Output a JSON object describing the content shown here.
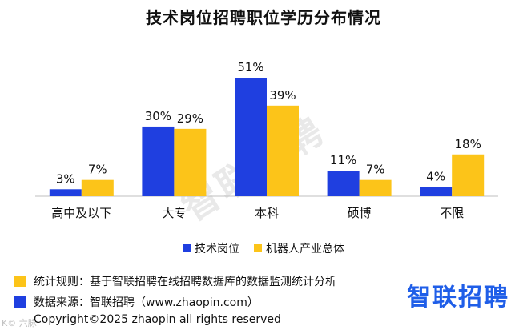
{
  "title": "技术岗位招聘职位学历分布情况",
  "watermark": "智联招聘",
  "legend": [
    {
      "label": "技术岗位",
      "color": "#1f3fe0"
    },
    {
      "label": "机器人产业总体",
      "color": "#fcc419"
    }
  ],
  "notes": [
    {
      "text": "统计规则：基于智联招聘在线招聘数据库的数据监测统计分析",
      "color": "#fcc419"
    },
    {
      "text": "数据来源：智联招聘（www.zhaopin.com）",
      "color": "#1f3fe0"
    }
  ],
  "brand": "智联招聘",
  "copyright": "Copyright©2025 zhaopin all rights reserved",
  "corner_mark": "K© 六脉",
  "chart_data": {
    "type": "bar",
    "title": "技术岗位招聘职位学历分布情况",
    "categories": [
      "高中及以下",
      "大专",
      "本科",
      "硕博",
      "不限"
    ],
    "series": [
      {
        "name": "技术岗位",
        "values": [
          3,
          30,
          51,
          11,
          4
        ],
        "labels": [
          "3%",
          "30%",
          "51%",
          "11%",
          "4%"
        ],
        "color": "#1f3fe0"
      },
      {
        "name": "机器人产业总体",
        "values": [
          7,
          29,
          39,
          7,
          18
        ],
        "labels": [
          "7%",
          "29%",
          "39%",
          "7%",
          "18%"
        ],
        "color": "#fcc419"
      }
    ],
    "ylim": [
      0,
      51
    ],
    "grid": false,
    "legend_position": "bottom"
  }
}
